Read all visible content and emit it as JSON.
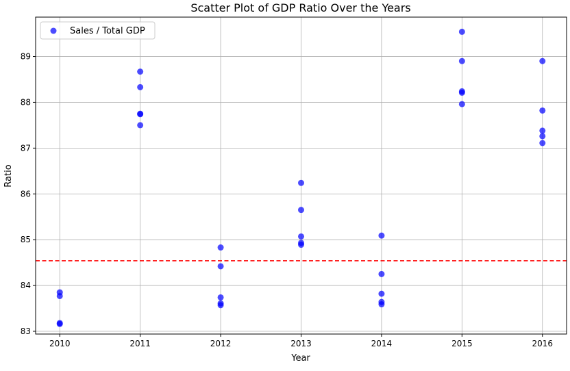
{
  "chart_data": {
    "type": "scatter",
    "title": "Scatter Plot of GDP Ratio Over the Years",
    "xlabel": "Year",
    "ylabel": "Ratio",
    "xlim": [
      2009.7,
      2016.3
    ],
    "ylim": [
      82.94,
      89.86
    ],
    "xticks": [
      2010,
      2011,
      2012,
      2013,
      2014,
      2015,
      2016
    ],
    "yticks": [
      83,
      84,
      85,
      86,
      87,
      88,
      89
    ],
    "grid": true,
    "legend": {
      "position": "top-left",
      "entries": [
        "Sales / Total GDP"
      ]
    },
    "series": [
      {
        "name": "Sales / Total GDP",
        "color": "#0000ff",
        "points": [
          {
            "x": 2010,
            "y": 83.85
          },
          {
            "x": 2010,
            "y": 83.77
          },
          {
            "x": 2010,
            "y": 83.18
          },
          {
            "x": 2010,
            "y": 83.16
          },
          {
            "x": 2011,
            "y": 88.67
          },
          {
            "x": 2011,
            "y": 88.33
          },
          {
            "x": 2011,
            "y": 87.75
          },
          {
            "x": 2011,
            "y": 87.74
          },
          {
            "x": 2011,
            "y": 87.5
          },
          {
            "x": 2012,
            "y": 84.83
          },
          {
            "x": 2012,
            "y": 84.42
          },
          {
            "x": 2012,
            "y": 83.74
          },
          {
            "x": 2012,
            "y": 83.61
          },
          {
            "x": 2012,
            "y": 83.57
          },
          {
            "x": 2013,
            "y": 86.24
          },
          {
            "x": 2013,
            "y": 85.65
          },
          {
            "x": 2013,
            "y": 85.07
          },
          {
            "x": 2013,
            "y": 84.93
          },
          {
            "x": 2013,
            "y": 84.89
          },
          {
            "x": 2014,
            "y": 85.09
          },
          {
            "x": 2014,
            "y": 84.25
          },
          {
            "x": 2014,
            "y": 83.82
          },
          {
            "x": 2014,
            "y": 83.64
          },
          {
            "x": 2014,
            "y": 83.59
          },
          {
            "x": 2015,
            "y": 89.54
          },
          {
            "x": 2015,
            "y": 88.9
          },
          {
            "x": 2015,
            "y": 88.24
          },
          {
            "x": 2015,
            "y": 88.21
          },
          {
            "x": 2015,
            "y": 87.96
          },
          {
            "x": 2016,
            "y": 88.9
          },
          {
            "x": 2016,
            "y": 87.82
          },
          {
            "x": 2016,
            "y": 87.38
          },
          {
            "x": 2016,
            "y": 87.26
          },
          {
            "x": 2016,
            "y": 87.11
          }
        ]
      }
    ],
    "reference_line": {
      "orientation": "horizontal",
      "y": 84.54,
      "color": "#ff0000",
      "style": "dashed"
    }
  }
}
